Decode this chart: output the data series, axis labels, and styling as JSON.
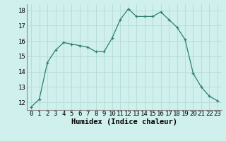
{
  "x": [
    0,
    1,
    2,
    3,
    4,
    5,
    6,
    7,
    8,
    9,
    10,
    11,
    12,
    13,
    14,
    15,
    16,
    17,
    18,
    19,
    20,
    21,
    22,
    23
  ],
  "y": [
    11.7,
    12.2,
    14.6,
    15.4,
    15.9,
    15.8,
    15.7,
    15.6,
    15.3,
    15.3,
    16.2,
    17.4,
    18.1,
    17.6,
    17.6,
    17.6,
    17.9,
    17.4,
    16.9,
    16.1,
    13.9,
    13.0,
    12.4,
    12.1
  ],
  "line_color": "#2e7d6e",
  "bg_color": "#cff0ec",
  "grid_color": "#b8ddd8",
  "xlabel": "Humidex (Indice chaleur)",
  "xlabel_fontsize": 7.5,
  "tick_fontsize": 6.5,
  "ylim": [
    11.5,
    18.4
  ],
  "yticks": [
    12,
    13,
    14,
    15,
    16,
    17,
    18
  ],
  "xticks": [
    0,
    1,
    2,
    3,
    4,
    5,
    6,
    7,
    8,
    9,
    10,
    11,
    12,
    13,
    14,
    15,
    16,
    17,
    18,
    19,
    20,
    21,
    22,
    23
  ]
}
